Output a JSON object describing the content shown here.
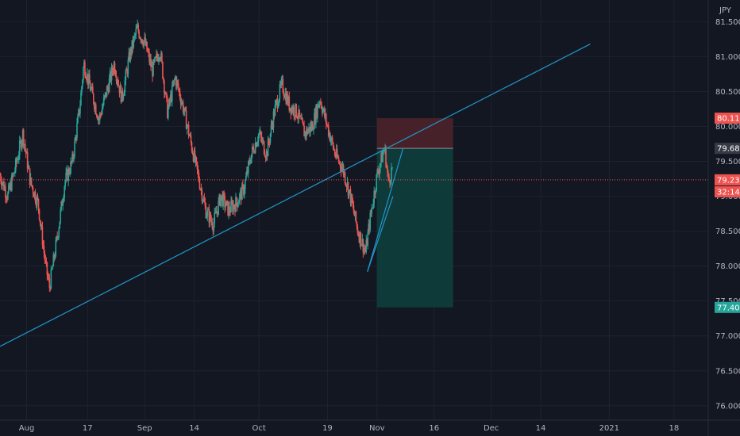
{
  "chart_data": {
    "type": "candlestick",
    "currency": "JPY",
    "ylim": [
      75.85,
      81.72
    ],
    "y_ticks": [
      "81.500",
      "81.000",
      "80.500",
      "80.000",
      "79.500",
      "79.000",
      "78.500",
      "78.000",
      "77.500",
      "77.000",
      "76.500",
      "76.000"
    ],
    "x_ticks": [
      {
        "label": "Aug",
        "day": 0
      },
      {
        "label": "17",
        "day": 16
      },
      {
        "label": "Sep",
        "day": 31
      },
      {
        "label": "14",
        "day": 44
      },
      {
        "label": "Oct",
        "day": 61
      },
      {
        "label": "19",
        "day": 79
      },
      {
        "label": "Nov",
        "day": 92
      },
      {
        "label": "16",
        "day": 107
      },
      {
        "label": "Dec",
        "day": 122
      },
      {
        "label": "14",
        "day": 135
      },
      {
        "label": "2021",
        "day": 153
      },
      {
        "label": "18",
        "day": 170
      }
    ],
    "x_domain_days": [
      -7,
      179
    ],
    "candle_count": 500,
    "keypoints": [
      [
        -7,
        79.3
      ],
      [
        -5,
        79.0
      ],
      [
        -3,
        79.4
      ],
      [
        -1,
        79.9
      ],
      [
        1,
        79.2
      ],
      [
        3,
        78.9
      ],
      [
        5,
        78.0
      ],
      [
        6,
        77.7
      ],
      [
        8,
        78.4
      ],
      [
        10,
        79.2
      ],
      [
        12,
        79.5
      ],
      [
        14,
        80.3
      ],
      [
        15,
        80.9
      ],
      [
        17,
        80.5
      ],
      [
        19,
        80.1
      ],
      [
        21,
        80.5
      ],
      [
        23,
        80.9
      ],
      [
        25,
        80.4
      ],
      [
        27,
        81.0
      ],
      [
        29,
        81.4
      ],
      [
        31,
        81.2
      ],
      [
        33,
        80.8
      ],
      [
        35,
        81.1
      ],
      [
        37,
        80.2
      ],
      [
        39,
        80.7
      ],
      [
        41,
        80.3
      ],
      [
        43,
        79.8
      ],
      [
        45,
        79.3
      ],
      [
        47,
        78.8
      ],
      [
        49,
        78.6
      ],
      [
        51,
        79.0
      ],
      [
        53,
        78.8
      ],
      [
        55,
        78.9
      ],
      [
        57,
        79.1
      ],
      [
        59,
        79.6
      ],
      [
        61,
        79.9
      ],
      [
        63,
        79.6
      ],
      [
        65,
        80.2
      ],
      [
        67,
        80.6
      ],
      [
        69,
        80.3
      ],
      [
        71,
        80.2
      ],
      [
        73,
        79.9
      ],
      [
        75,
        80.0
      ],
      [
        77,
        80.4
      ],
      [
        79,
        80.0
      ],
      [
        81,
        79.6
      ],
      [
        83,
        79.4
      ],
      [
        85,
        79.0
      ],
      [
        87,
        78.5
      ],
      [
        89,
        78.2
      ],
      [
        90,
        78.6
      ],
      [
        92,
        79.3
      ],
      [
        94,
        79.7
      ],
      [
        95,
        79.2
      ],
      [
        96,
        79.4
      ]
    ],
    "overlays": {
      "trendline": {
        "start": [
          -7,
          76.85
        ],
        "end": [
          148,
          81.18
        ]
      },
      "wedge": {
        "vertex": [
          89.5,
          77.92
        ],
        "upper": [
          98.8,
          79.68
        ],
        "lower": [
          96.2,
          79.0
        ]
      },
      "position": {
        "from_day": 92,
        "to_day": 112,
        "entry": 79.686,
        "stop": 80.118,
        "target": 77.408
      },
      "current_price": 79.235
    },
    "labels": {
      "stop": "80.118",
      "entry": "79.686",
      "current": "79.235",
      "countdown": "32:14",
      "target": "77.408"
    },
    "colors": {
      "background": "#131722",
      "up": "#26a69a",
      "down": "#ef5350",
      "trendline": "#2196c8",
      "stop_zone": "#4a222a",
      "target_zone": "#0f3c3c",
      "entry_tag": "#363a45",
      "grid": "#1e2230",
      "tick_text": "#b2b5be"
    }
  }
}
